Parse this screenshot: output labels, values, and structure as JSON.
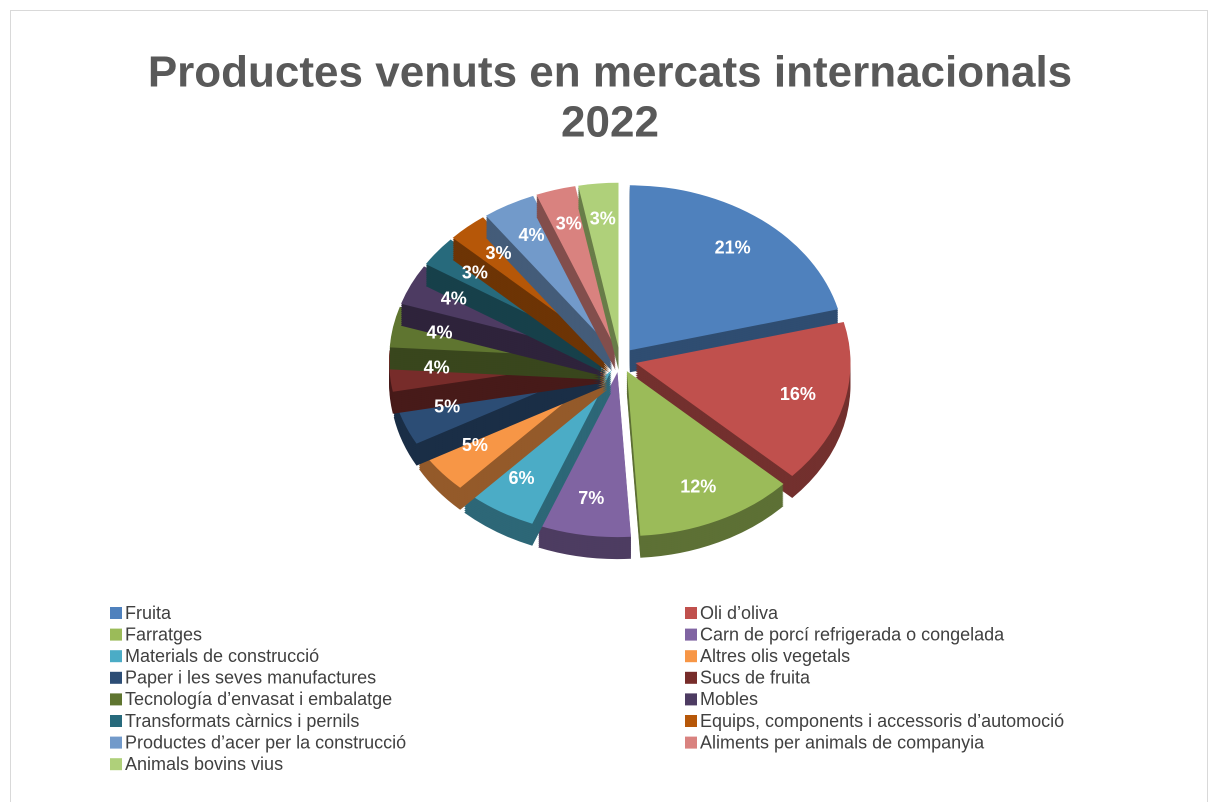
{
  "chart_data": {
    "type": "pie",
    "title": [
      "Productes venuts en mercats internacionals",
      "2022"
    ],
    "categories": [
      "Fruita",
      "Oli d’oliva",
      "Farratges",
      "Carn de porcí refrigerada o congelada",
      "Materials de construcció",
      "Altres olis vegetals",
      "Paper i les seves manufactures",
      "Sucs de fruita",
      "Tecnología d’envasat i embalatge",
      "Mobles",
      "Transformats càrnics i pernils",
      "Equips, components i accessoris d’automoció",
      "Productes d’acer per la construcció",
      "Aliments per animals de companyia",
      "Animals bovins vius"
    ],
    "values": [
      21,
      16,
      12,
      7,
      6,
      5,
      5,
      4,
      4,
      4,
      3,
      3,
      4,
      3,
      3
    ],
    "value_labels": [
      "21%",
      "16%",
      "12%",
      "7%",
      "6%",
      "5%",
      "5%",
      "4%",
      "4%",
      "4%",
      "3%",
      "3%",
      "4%",
      "3%",
      "3%"
    ],
    "colors": [
      "#4f81bd",
      "#c0504d",
      "#9bbb59",
      "#8064a2",
      "#4bacc6",
      "#f79646",
      "#2c4d75",
      "#772c2a",
      "#5f7530",
      "#4d3b62",
      "#276a7c",
      "#b65708",
      "#729aca",
      "#d9827f",
      "#afd07a"
    ],
    "legend": "bottom"
  }
}
